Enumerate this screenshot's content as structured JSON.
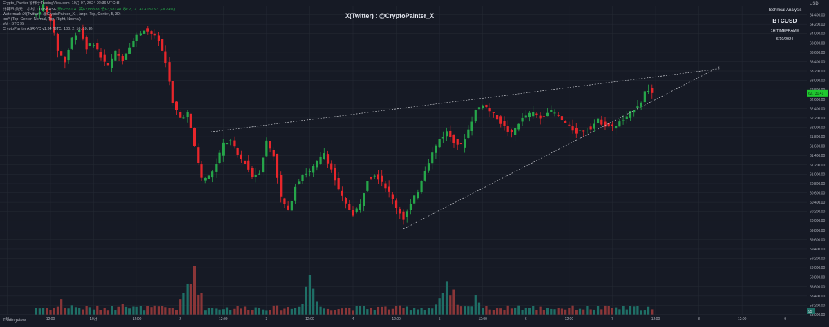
{
  "header": {
    "title_line": "Crypto_Painter 發佈于TradingView.com, 10月 07, 2024 02:36 UTC+8",
    "symbol_line": "比特币/美元, 1小时, COINBASE",
    "ohlc_values": "开62,581.41 高62,888.88 低62,581.41 收62,731.41 +152.53 (+0.24%)",
    "line2": "Watermark (X(Twitter) : @CryptoPainter_X, , large, Top, Center, 5, 30)",
    "line3": "too^ (Top, Center, Normal, Top, Right, Normal)",
    "line4": "Vol · BTC  95",
    "line5": "CryptoPainter ASR-VC v1.34 (BTC, 100, 2, 16, 10, 8)"
  },
  "watermark": "X(Twitter) : @CryptoPainter_X",
  "info_box": {
    "title": "Technical Analysis",
    "symbol": "BTCUSD",
    "timeframe": "1H TIMEFRAME",
    "date": "6/10/2024"
  },
  "currency": "USD",
  "current_price": "62,731.41",
  "current_volume": "95",
  "branding": "TradingView",
  "colors": {
    "background": "#161a25",
    "up": "#26a64a",
    "down": "#e8262b",
    "vol_up": "#1f6f66",
    "vol_down": "#8a3638",
    "grid": "#262b36",
    "text": "#b2b5be",
    "trendline": "#c8cad0",
    "price_tag": "#1fc82f"
  },
  "chart_data": {
    "type": "candlestick",
    "symbol": "BTCUSD",
    "interval": "1H",
    "y_axis_ticks": [
      "58,000.00",
      "58,200.00",
      "58,400.00",
      "58,600.00",
      "58,800.00",
      "59,000.00",
      "59,200.00",
      "59,400.00",
      "59,600.00",
      "59,800.00",
      "60,000.00",
      "60,200.00",
      "60,400.00",
      "60,600.00",
      "60,800.00",
      "61,000.00",
      "61,200.00",
      "61,400.00",
      "61,600.00",
      "61,800.00",
      "62,000.00",
      "62,200.00",
      "62,400.00",
      "62,600.00",
      "62,800.00",
      "63,000.00",
      "63,200.00",
      "63,400.00",
      "63,600.00",
      "63,800.00",
      "64,000.00",
      "64,200.00",
      "64,400.00"
    ],
    "y_axis_values": [
      58000,
      58200,
      58400,
      58600,
      58800,
      59000,
      59200,
      59400,
      59600,
      59800,
      60000,
      60200,
      60400,
      60600,
      60800,
      61000,
      61200,
      61400,
      61600,
      61800,
      62000,
      62200,
      62400,
      62600,
      62800,
      63000,
      63200,
      63400,
      63600,
      63800,
      64000,
      64200,
      64400
    ],
    "ylim": [
      58000,
      64600
    ],
    "x_axis_ticks": [
      "30",
      "12:00",
      "10月",
      "12:00",
      "2",
      "12:00",
      "3",
      "12:00",
      "4",
      "12:00",
      "5",
      "12:00",
      "6",
      "12:00",
      "7",
      "12:00",
      "8",
      "12:00",
      "9"
    ],
    "x_axis_hours": [
      -12,
      0,
      12,
      24,
      36,
      48,
      60,
      72,
      84,
      96,
      108,
      120,
      132,
      144,
      156,
      168,
      180,
      192,
      204
    ],
    "x_range_hours": [
      -14,
      210
    ],
    "price_anchors": [
      [
        -4,
        64400
      ],
      [
        -2,
        64600
      ],
      [
        0,
        64300
      ],
      [
        2,
        63650
      ],
      [
        4,
        63400
      ],
      [
        6,
        63900
      ],
      [
        8,
        64100
      ],
      [
        10,
        63700
      ],
      [
        12,
        63800
      ],
      [
        14,
        63500
      ],
      [
        16,
        63300
      ],
      [
        18,
        63600
      ],
      [
        20,
        63450
      ],
      [
        22,
        63750
      ],
      [
        24,
        63950
      ],
      [
        26,
        64100
      ],
      [
        28,
        64000
      ],
      [
        30,
        63850
      ],
      [
        32,
        63400
      ],
      [
        34,
        62500
      ],
      [
        36,
        62200
      ],
      [
        38,
        62300
      ],
      [
        40,
        61600
      ],
      [
        42,
        60900
      ],
      [
        44,
        60950
      ],
      [
        46,
        61200
      ],
      [
        48,
        61650
      ],
      [
        50,
        61700
      ],
      [
        52,
        61400
      ],
      [
        54,
        61250
      ],
      [
        56,
        60950
      ],
      [
        58,
        61050
      ],
      [
        60,
        61700
      ],
      [
        62,
        61400
      ],
      [
        64,
        60500
      ],
      [
        66,
        60200
      ],
      [
        68,
        60750
      ],
      [
        70,
        61000
      ],
      [
        72,
        61050
      ],
      [
        74,
        61250
      ],
      [
        76,
        61450
      ],
      [
        78,
        61100
      ],
      [
        80,
        60650
      ],
      [
        82,
        60350
      ],
      [
        84,
        60150
      ],
      [
        86,
        60350
      ],
      [
        88,
        60900
      ],
      [
        90,
        61000
      ],
      [
        92,
        60850
      ],
      [
        94,
        60600
      ],
      [
        96,
        60300
      ],
      [
        98,
        60050
      ],
      [
        100,
        60350
      ],
      [
        102,
        60650
      ],
      [
        104,
        61100
      ],
      [
        106,
        61450
      ],
      [
        108,
        61750
      ],
      [
        110,
        61900
      ],
      [
        112,
        61700
      ],
      [
        114,
        61600
      ],
      [
        116,
        61950
      ],
      [
        118,
        62350
      ],
      [
        120,
        62500
      ],
      [
        122,
        62350
      ],
      [
        124,
        62200
      ],
      [
        126,
        62000
      ],
      [
        128,
        61850
      ],
      [
        130,
        62100
      ],
      [
        132,
        62250
      ],
      [
        134,
        62300
      ],
      [
        136,
        62200
      ],
      [
        138,
        62350
      ],
      [
        140,
        62300
      ],
      [
        142,
        62150
      ],
      [
        144,
        62000
      ],
      [
        146,
        61900
      ],
      [
        148,
        61950
      ],
      [
        150,
        62000
      ],
      [
        152,
        62150
      ],
      [
        154,
        62050
      ],
      [
        156,
        62000
      ],
      [
        158,
        62100
      ],
      [
        160,
        62200
      ],
      [
        162,
        62400
      ],
      [
        164,
        62550
      ],
      [
        165,
        62750
      ],
      [
        166,
        62800
      ],
      [
        167,
        62731.41
      ]
    ],
    "volume_hours": [
      -11,
      3,
      6,
      20,
      37,
      38,
      39,
      40,
      70,
      72,
      108,
      110,
      112,
      118,
      128,
      130,
      166,
      167
    ],
    "volume_peaks": [
      0.05,
      0.15,
      0.12,
      0.2,
      0.2,
      0.35,
      0.25,
      0.6,
      0.2,
      0.5,
      0.18,
      0.3,
      0.22,
      0.25,
      0.12,
      0.1,
      0.05,
      0.03
    ],
    "trendlines": [
      {
        "from_hour": 44.5,
        "from_price": 61900,
        "to_hour": 167,
        "to_price": 63150,
        "style": "dashed"
      },
      {
        "from_hour": 98,
        "from_price": 59830,
        "to_hour": 167,
        "to_price": 62870,
        "style": "dashed"
      }
    ],
    "grid": true
  }
}
